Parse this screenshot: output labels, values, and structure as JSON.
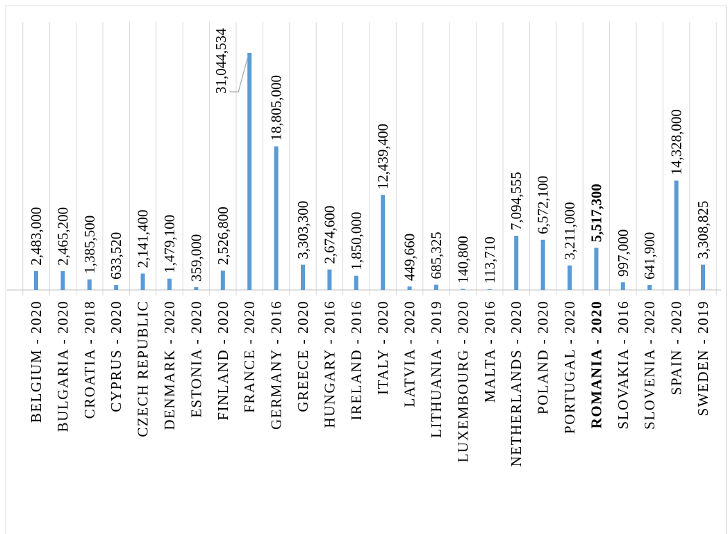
{
  "chart_data": {
    "type": "bar",
    "orientation": "vertical",
    "categories": [
      "BELGIUM - 2020",
      "BULGARIA - 2020",
      "CROATIA - 2018",
      "CYPRUS - 2020",
      "CZECH REPUBLIC",
      "DENMARK - 2020",
      "ESTONIA - 2020",
      "FINLAND - 2020",
      "FRANCE - 2020",
      "GERMANY - 2016",
      "GREECE - 2020",
      "HUNGARY - 2016",
      "IRELAND - 2016",
      "ITALY - 2020",
      "LATVIA - 2020",
      "LITHUANIA - 2019",
      "LUXEMBOURG - 2020",
      "MALTA - 2016",
      "NETHERLANDS - 2020",
      "POLAND - 2020",
      "PORTUGAL - 2020",
      "ROMANIA - 2020",
      "SLOVAKIA - 2016",
      "SLOVENIA - 2020",
      "SPAIN - 2020",
      "SWEDEN - 2019"
    ],
    "values": [
      2483000,
      2465200,
      1385500,
      633520,
      2141400,
      1479100,
      359000,
      2526800,
      31044534,
      18805000,
      3303300,
      2674600,
      1850000,
      12439400,
      449660,
      685325,
      140800,
      113710,
      7094555,
      6572100,
      3211000,
      5517300,
      997000,
      641900,
      14328000,
      3308825
    ],
    "value_labels": [
      "2,483,000",
      "2,465,200",
      "1,385,500",
      "633,520",
      "2,141,400",
      "1,479,100",
      "359,000",
      "2,526,800",
      "31,044,534",
      "18,805,000",
      "3,303,300",
      "2,674,600",
      "1,850,000",
      "12,439,400",
      "449,660",
      "685,325",
      "140,800",
      "113,710",
      "7,094,555",
      "6,572,100",
      "3,211,000",
      "5,517,300",
      "997,000",
      "641,900",
      "14,328,000",
      "3,308,825"
    ],
    "highlighted_category": "ROMANIA - 2020",
    "bar_color": "#5b9bd5",
    "gridline_color": "#d9d9d9",
    "axis_line_color": "#bfbfbf",
    "leader_line_color": "#a6a6a6",
    "text_color": "#000000",
    "grid": true,
    "legend": false,
    "ylim": [
      0,
      31044534
    ],
    "title": "",
    "xlabel": "",
    "ylabel": ""
  }
}
